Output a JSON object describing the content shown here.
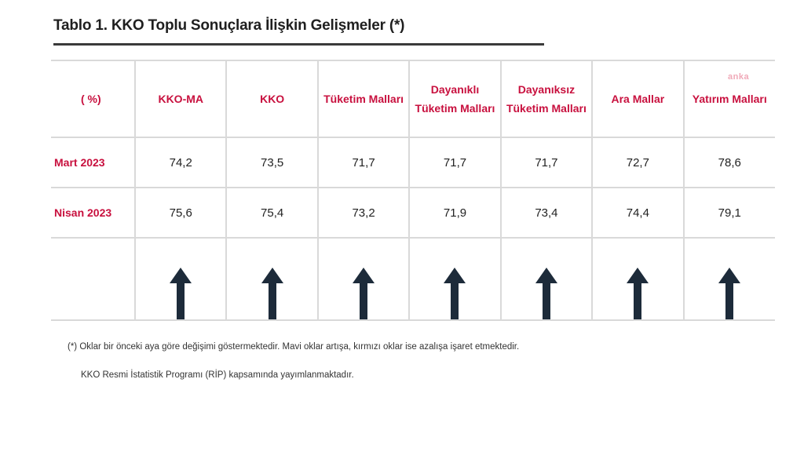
{
  "title": "Tablo 1. KKO Toplu Sonuçlara İlişkin Gelişmeler (*)",
  "watermark": "anka",
  "table": {
    "unit_label": "( %)",
    "columns": [
      [
        "KKO-MA"
      ],
      [
        "KKO"
      ],
      [
        "Tüketim Malları"
      ],
      [
        "Dayanıklı",
        "Tüketim Malları"
      ],
      [
        "Dayanıksız",
        "Tüketim Malları"
      ],
      [
        "Ara Mallar"
      ],
      [
        "Yatırım Malları"
      ]
    ],
    "rows": [
      {
        "label": "Mart 2023",
        "values": [
          "74,2",
          "73,5",
          "71,7",
          "71,7",
          "71,7",
          "72,7",
          "78,6"
        ]
      },
      {
        "label": "Nisan 2023",
        "values": [
          "75,6",
          "75,4",
          "73,2",
          "71,9",
          "73,4",
          "74,4",
          "79,1"
        ]
      }
    ],
    "arrows": [
      "up",
      "up",
      "up",
      "up",
      "up",
      "up",
      "up"
    ],
    "arrow_color": "#1d2b3a"
  },
  "footnotes": [
    "(*) Oklar bir önceki aya göre değişimi göstermektedir. Mavi oklar artışa, kırmızı oklar ise azalışa işaret etmektedir.",
    "KKO Resmi İstatistik Programı (RİP) kapsamında yayımlanmaktadır."
  ],
  "colors": {
    "accent": "#c8103e",
    "text": "#222222",
    "grid": "#d9d9d9"
  }
}
